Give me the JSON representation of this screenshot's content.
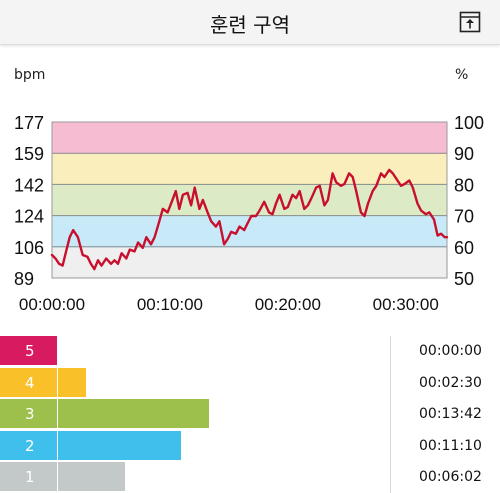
{
  "header": {
    "title": "훈련 구역",
    "export_icon": "export-icon"
  },
  "units": {
    "left": "bpm",
    "right": "%"
  },
  "colors": {
    "line": "#c8102e",
    "band_red": "#f6bcd2",
    "band_yellow": "#fbeebd",
    "band_green": "#dcebc5",
    "band_blue": "#c8e9f8",
    "band_gray": "#efefef"
  },
  "chart_data": {
    "type": "line",
    "title": "",
    "xlabel": "",
    "ylabel": "bpm",
    "y2label": "%",
    "ylim": [
      89,
      177
    ],
    "y2lim": [
      50,
      100
    ],
    "yticks": [
      "177",
      "159",
      "142",
      "124",
      "106",
      "89"
    ],
    "y2ticks": [
      "100",
      "90",
      "80",
      "70",
      "60",
      "50"
    ],
    "xticks": [
      "00:00:00",
      "00:10:00",
      "00:20:00",
      "00:30:00"
    ],
    "xlim_min": [
      0,
      33.5
    ],
    "zones": [
      {
        "from": 159,
        "to": 177,
        "color": "#f6bcd2"
      },
      {
        "from": 142,
        "to": 159,
        "color": "#fbeebd"
      },
      {
        "from": 124,
        "to": 142,
        "color": "#dcebc5"
      },
      {
        "from": 106,
        "to": 124,
        "color": "#c8e9f8"
      },
      {
        "from": 89,
        "to": 106,
        "color": "#efefef"
      }
    ],
    "series": [
      {
        "x_min": [
          0,
          0.3,
          0.6,
          0.9,
          1.2,
          1.5,
          1.8,
          2.2,
          2.6,
          3.0,
          3.3,
          3.6,
          3.9,
          4.2,
          4.6,
          5.0,
          5.3,
          5.6,
          5.9,
          6.3,
          6.6,
          7.0,
          7.3,
          7.7,
          8.0,
          8.4,
          8.7,
          9.1,
          9.4,
          9.8,
          10.1,
          10.5,
          10.8,
          11.1,
          11.5,
          11.8,
          12.1,
          12.5,
          12.8,
          13.2,
          13.5,
          13.9,
          14.2,
          14.6,
          14.9,
          15.2,
          15.6,
          15.9,
          16.3,
          16.6,
          16.9,
          17.3,
          17.6,
          18.0,
          18.4,
          18.7,
          19.0,
          19.3,
          19.7,
          20.0,
          20.4,
          20.7,
          21.0,
          21.4,
          21.7,
          22.0,
          22.4,
          22.7,
          23.1,
          23.4,
          23.8,
          24.1,
          24.5,
          24.8,
          25.2,
          25.5,
          25.8,
          26.2,
          26.5,
          26.8,
          27.2,
          27.5,
          27.9,
          28.2,
          28.6,
          28.9,
          29.2,
          29.6,
          29.9,
          30.3,
          30.6,
          31.0,
          31.3,
          31.7,
          32.0,
          32.4,
          32.7,
          33.0,
          33.3,
          33.5
        ],
        "y_bpm": [
          102,
          100,
          97,
          96,
          104,
          112,
          116,
          112,
          102,
          101,
          97,
          94,
          99,
          96,
          100,
          97,
          99,
          97,
          103,
          100,
          105,
          104,
          109,
          106,
          112,
          108,
          112,
          121,
          128,
          126,
          131,
          138,
          128,
          136,
          137,
          130,
          140,
          128,
          133,
          126,
          121,
          118,
          121,
          108,
          111,
          115,
          114,
          118,
          116,
          120,
          124,
          124,
          127,
          132,
          126,
          125,
          131,
          136,
          128,
          129,
          136,
          134,
          138,
          128,
          130,
          134,
          140,
          141,
          130,
          133,
          148,
          143,
          141,
          142,
          148,
          146,
          138,
          126,
          124,
          131,
          138,
          141,
          148,
          146,
          150,
          148,
          145,
          141,
          142,
          144,
          140,
          131,
          127,
          125,
          126,
          122,
          113,
          114,
          112,
          112
        ]
      }
    ]
  },
  "zone_summary": [
    {
      "zone": "5",
      "time": "00:00:00",
      "fraction": 0.0,
      "color": "#d81b60"
    },
    {
      "zone": "4",
      "time": "00:02:30",
      "fraction": 0.0707,
      "color": "#f9c02a"
    },
    {
      "zone": "3",
      "time": "00:13:42",
      "fraction": 0.3875,
      "color": "#9dc04c"
    },
    {
      "zone": "2",
      "time": "00:11:10",
      "fraction": 0.3159,
      "color": "#3fc0ec"
    },
    {
      "zone": "1",
      "time": "00:06:02",
      "fraction": 0.1707,
      "color": "#c3c8c8"
    }
  ]
}
